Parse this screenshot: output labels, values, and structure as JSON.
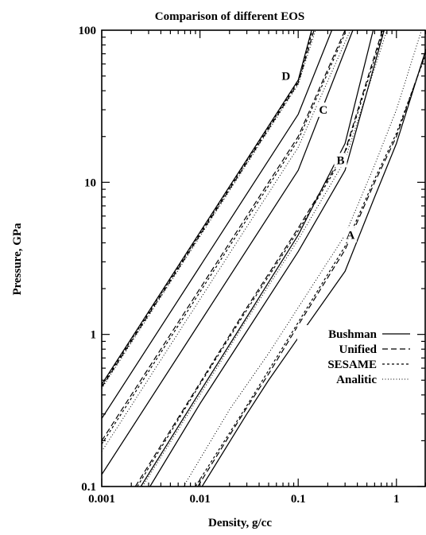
{
  "chart_data": {
    "type": "line",
    "title": "Comparison of different EOS",
    "xlabel": "Density, g/cc",
    "ylabel": "Pressure, GPa",
    "xscale": "log",
    "yscale": "log",
    "xlim": [
      0.001,
      2
    ],
    "ylim": [
      0.1,
      100
    ],
    "x_ticks": [
      "0.001",
      "0.01",
      "0.1",
      "1"
    ],
    "y_ticks": [
      "0.1",
      "1",
      "10",
      "100"
    ],
    "grid": false,
    "legend": {
      "position": "bottom-right",
      "entries": [
        "Bushman",
        "Unified",
        "SESAME",
        "Analitic"
      ]
    },
    "line_styles": {
      "Bushman": "solid",
      "Unified": "long-dash",
      "SESAME": "short-dash",
      "Analitic": "dotted"
    },
    "annotations": [
      {
        "text": "D",
        "x": 0.075,
        "y": 50
      },
      {
        "text": "C",
        "x": 0.18,
        "y": 30
      },
      {
        "text": "B",
        "x": 0.27,
        "y": 14
      },
      {
        "text": "A",
        "x": 0.34,
        "y": 4.5
      }
    ],
    "series": [
      {
        "name": "Bushman",
        "style": "solid",
        "group": "D",
        "x": [
          0.001,
          0.01,
          0.1,
          0.137
        ],
        "y": [
          0.47,
          4.7,
          47,
          100
        ]
      },
      {
        "name": "Unified",
        "style": "long-dash",
        "group": "D",
        "x": [
          0.001,
          0.01,
          0.1,
          0.145
        ],
        "y": [
          0.45,
          4.5,
          45,
          100
        ]
      },
      {
        "name": "SESAME",
        "style": "short-dash",
        "group": "D",
        "x": [
          0.001,
          0.01,
          0.1,
          0.14
        ],
        "y": [
          0.46,
          4.6,
          46,
          100
        ]
      },
      {
        "name": "Analitic",
        "style": "dotted",
        "group": "D",
        "x": [
          0.001,
          0.01,
          0.1,
          0.15
        ],
        "y": [
          0.44,
          4.4,
          44,
          100
        ]
      },
      {
        "name": "Bushman",
        "style": "solid",
        "group": "C-upper",
        "x": [
          0.001,
          0.01,
          0.1,
          0.22
        ],
        "y": [
          0.28,
          2.8,
          28,
          100
        ]
      },
      {
        "name": "Bushman",
        "style": "solid",
        "group": "C",
        "x": [
          0.001,
          0.01,
          0.1,
          0.36
        ],
        "y": [
          0.12,
          1.2,
          12,
          100
        ]
      },
      {
        "name": "Unified",
        "style": "long-dash",
        "group": "C",
        "x": [
          0.001,
          0.01,
          0.1,
          0.3
        ],
        "y": [
          0.2,
          2,
          20,
          100
        ]
      },
      {
        "name": "SESAME",
        "style": "short-dash",
        "group": "C",
        "x": [
          0.001,
          0.01,
          0.1,
          0.31
        ],
        "y": [
          0.19,
          1.9,
          19,
          100
        ]
      },
      {
        "name": "Analitic",
        "style": "dotted",
        "group": "C",
        "x": [
          0.001,
          0.01,
          0.1,
          0.34
        ],
        "y": [
          0.17,
          1.7,
          17,
          100
        ]
      },
      {
        "name": "Bushman",
        "style": "solid",
        "group": "B-upper",
        "x": [
          0.0025,
          0.01,
          0.03,
          0.1,
          0.3,
          0.58
        ],
        "y": [
          0.1,
          0.42,
          1.3,
          4.5,
          18,
          100
        ]
      },
      {
        "name": "Bushman",
        "style": "solid",
        "group": "B",
        "x": [
          0.0031,
          0.01,
          0.03,
          0.1,
          0.3,
          0.75
        ],
        "y": [
          0.1,
          0.35,
          1.05,
          3.5,
          12,
          100
        ]
      },
      {
        "name": "Unified",
        "style": "long-dash",
        "group": "B",
        "x": [
          0.0022,
          0.01,
          0.03,
          0.1,
          0.3,
          0.72
        ],
        "y": [
          0.1,
          0.48,
          1.5,
          5,
          16,
          100
        ]
      },
      {
        "name": "SESAME",
        "style": "short-dash",
        "group": "B",
        "x": [
          0.0023,
          0.01,
          0.03,
          0.1,
          0.3,
          0.74
        ],
        "y": [
          0.1,
          0.47,
          1.45,
          4.8,
          15.5,
          100
        ]
      },
      {
        "name": "Analitic",
        "style": "dotted",
        "group": "B",
        "x": [
          0.0026,
          0.01,
          0.03,
          0.1,
          0.3,
          0.8
        ],
        "y": [
          0.1,
          0.4,
          1.25,
          4.2,
          14,
          100
        ]
      },
      {
        "name": "Bushman",
        "style": "solid",
        "group": "A",
        "x": [
          0.0105,
          0.03,
          0.05,
          0.1,
          0.3,
          0.6,
          1,
          2
        ],
        "y": [
          0.1,
          0.3,
          0.5,
          0.95,
          2.6,
          8,
          18,
          75
        ]
      },
      {
        "name": "Unified",
        "style": "long-dash",
        "group": "A",
        "x": [
          0.0095,
          0.03,
          0.05,
          0.1,
          0.3,
          0.6,
          1,
          2
        ],
        "y": [
          0.1,
          0.33,
          0.55,
          1.15,
          3.6,
          10,
          20,
          72
        ]
      },
      {
        "name": "SESAME",
        "style": "short-dash",
        "group": "A",
        "x": [
          0.009,
          0.03,
          0.05,
          0.1,
          0.3,
          0.6,
          1,
          2
        ],
        "y": [
          0.1,
          0.34,
          0.58,
          1.2,
          3.8,
          10.5,
          21,
          70
        ]
      },
      {
        "name": "Analitic",
        "style": "dotted",
        "group": "A",
        "x": [
          0.0068,
          0.02,
          0.05,
          0.1,
          0.3,
          0.6,
          1,
          1.8
        ],
        "y": [
          0.1,
          0.32,
          0.75,
          1.5,
          4.5,
          13,
          30,
          100
        ]
      }
    ]
  }
}
